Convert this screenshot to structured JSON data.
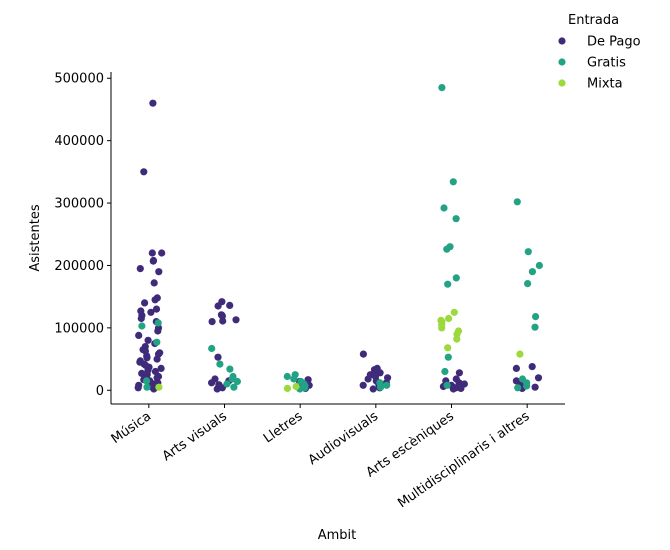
{
  "chart_data": {
    "type": "scatter",
    "title": "",
    "xlabel": "Ambit",
    "ylabel": "Asistentes",
    "categories": [
      "Música",
      "Arts visuals",
      "Lletres",
      "Audiovisuals",
      "Arts escèniques",
      "Multidisciplinaris i altres"
    ],
    "y_ticks": [
      "0",
      "100000",
      "200000",
      "300000",
      "400000",
      "500000"
    ],
    "ylim": [
      -22000,
      510000
    ],
    "grid": false,
    "legend": {
      "title": "Entrada",
      "placement": "top-right",
      "entries": [
        {
          "label": "De Pago",
          "color": "#3f2b7a"
        },
        {
          "label": "Gratis",
          "color": "#22a384"
        },
        {
          "label": "Mixta",
          "color": "#9bd93c"
        }
      ]
    },
    "series": [
      {
        "name": "De Pago",
        "color": "#3f2b7a",
        "points": [
          [
            "Música",
            460000
          ],
          [
            "Música",
            350000
          ],
          [
            "Música",
            220000
          ],
          [
            "Música",
            220000
          ],
          [
            "Música",
            208000
          ],
          [
            "Música",
            207000
          ],
          [
            "Música",
            195000
          ],
          [
            "Música",
            190000
          ],
          [
            "Música",
            172000
          ],
          [
            "Música",
            148000
          ],
          [
            "Música",
            145000
          ],
          [
            "Música",
            140000
          ],
          [
            "Música",
            130000
          ],
          [
            "Música",
            127000
          ],
          [
            "Música",
            125000
          ],
          [
            "Música",
            120000
          ],
          [
            "Música",
            115000
          ],
          [
            "Música",
            110000
          ],
          [
            "Música",
            100000
          ],
          [
            "Música",
            95000
          ],
          [
            "Música",
            88000
          ],
          [
            "Música",
            80000
          ],
          [
            "Música",
            75000
          ],
          [
            "Música",
            70000
          ],
          [
            "Música",
            65000
          ],
          [
            "Música",
            63000
          ],
          [
            "Música",
            60000
          ],
          [
            "Música",
            58000
          ],
          [
            "Música",
            55000
          ],
          [
            "Música",
            52000
          ],
          [
            "Música",
            50000
          ],
          [
            "Música",
            47000
          ],
          [
            "Música",
            45000
          ],
          [
            "Música",
            42000
          ],
          [
            "Música",
            40000
          ],
          [
            "Música",
            37000
          ],
          [
            "Música",
            35000
          ],
          [
            "Música",
            32000
          ],
          [
            "Música",
            30000
          ],
          [
            "Música",
            27000
          ],
          [
            "Música",
            25000
          ],
          [
            "Música",
            22000
          ],
          [
            "Música",
            20000
          ],
          [
            "Música",
            17000
          ],
          [
            "Música",
            15000
          ],
          [
            "Música",
            12000
          ],
          [
            "Música",
            10000
          ],
          [
            "Música",
            8000
          ],
          [
            "Música",
            6000
          ],
          [
            "Música",
            4000
          ],
          [
            "Música",
            2000
          ],
          [
            "Arts visuals",
            142000
          ],
          [
            "Arts visuals",
            136000
          ],
          [
            "Arts visuals",
            135000
          ],
          [
            "Arts visuals",
            121000
          ],
          [
            "Arts visuals",
            120000
          ],
          [
            "Arts visuals",
            119000
          ],
          [
            "Arts visuals",
            113000
          ],
          [
            "Arts visuals",
            111000
          ],
          [
            "Arts visuals",
            110000
          ],
          [
            "Arts visuals",
            53000
          ],
          [
            "Arts visuals",
            18000
          ],
          [
            "Arts visuals",
            15000
          ],
          [
            "Arts visuals",
            12000
          ],
          [
            "Arts visuals",
            9000
          ],
          [
            "Arts visuals",
            6000
          ],
          [
            "Arts visuals",
            4000
          ],
          [
            "Arts visuals",
            2000
          ],
          [
            "Lletres",
            17000
          ],
          [
            "Lletres",
            14000
          ],
          [
            "Lletres",
            11000
          ],
          [
            "Lletres",
            8000
          ],
          [
            "Lletres",
            5000
          ],
          [
            "Lletres",
            3000
          ],
          [
            "Audiovisuals",
            58000
          ],
          [
            "Audiovisuals",
            35000
          ],
          [
            "Audiovisuals",
            33000
          ],
          [
            "Audiovisuals",
            30000
          ],
          [
            "Audiovisuals",
            28000
          ],
          [
            "Audiovisuals",
            25000
          ],
          [
            "Audiovisuals",
            22000
          ],
          [
            "Audiovisuals",
            20000
          ],
          [
            "Audiovisuals",
            18000
          ],
          [
            "Audiovisuals",
            15000
          ],
          [
            "Audiovisuals",
            12000
          ],
          [
            "Audiovisuals",
            10000
          ],
          [
            "Audiovisuals",
            8000
          ],
          [
            "Audiovisuals",
            6000
          ],
          [
            "Audiovisuals",
            4000
          ],
          [
            "Audiovisuals",
            2000
          ],
          [
            "Arts escèniques",
            28000
          ],
          [
            "Arts escèniques",
            18000
          ],
          [
            "Arts escèniques",
            15000
          ],
          [
            "Arts escèniques",
            12000
          ],
          [
            "Arts escèniques",
            10000
          ],
          [
            "Arts escèniques",
            8000
          ],
          [
            "Arts escèniques",
            6000
          ],
          [
            "Arts escèniques",
            5000
          ],
          [
            "Arts escèniques",
            4000
          ],
          [
            "Arts escèniques",
            3000
          ],
          [
            "Arts escèniques",
            2000
          ],
          [
            "Multidisciplinaris i altres",
            38000
          ],
          [
            "Multidisciplinaris i altres",
            35000
          ],
          [
            "Multidisciplinaris i altres",
            20000
          ],
          [
            "Multidisciplinaris i altres",
            15000
          ],
          [
            "Multidisciplinaris i altres",
            12000
          ],
          [
            "Multidisciplinaris i altres",
            8000
          ],
          [
            "Multidisciplinaris i altres",
            5000
          ],
          [
            "Multidisciplinaris i altres",
            3000
          ]
        ]
      },
      {
        "name": "Gratis",
        "color": "#22a384",
        "points": [
          [
            "Música",
            108000
          ],
          [
            "Música",
            103000
          ],
          [
            "Música",
            77000
          ],
          [
            "Música",
            15000
          ],
          [
            "Música",
            5000
          ],
          [
            "Arts visuals",
            67000
          ],
          [
            "Arts visuals",
            42000
          ],
          [
            "Arts visuals",
            34000
          ],
          [
            "Arts visuals",
            22000
          ],
          [
            "Arts visuals",
            18000
          ],
          [
            "Arts visuals",
            14000
          ],
          [
            "Arts visuals",
            10000
          ],
          [
            "Arts visuals",
            5000
          ],
          [
            "Lletres",
            25000
          ],
          [
            "Lletres",
            22000
          ],
          [
            "Lletres",
            18000
          ],
          [
            "Lletres",
            14000
          ],
          [
            "Lletres",
            10000
          ],
          [
            "Lletres",
            7000
          ],
          [
            "Lletres",
            4000
          ],
          [
            "Lletres",
            2000
          ],
          [
            "Audiovisuals",
            12000
          ],
          [
            "Audiovisuals",
            8000
          ],
          [
            "Audiovisuals",
            5000
          ],
          [
            "Arts escèniques",
            485000
          ],
          [
            "Arts escèniques",
            334000
          ],
          [
            "Arts escèniques",
            292000
          ],
          [
            "Arts escèniques",
            275000
          ],
          [
            "Arts escèniques",
            230000
          ],
          [
            "Arts escèniques",
            226000
          ],
          [
            "Arts escèniques",
            180000
          ],
          [
            "Arts escèniques",
            170000
          ],
          [
            "Arts escèniques",
            53000
          ],
          [
            "Arts escèniques",
            30000
          ],
          [
            "Arts escèniques",
            8000
          ],
          [
            "Multidisciplinaris i altres",
            302000
          ],
          [
            "Multidisciplinaris i altres",
            222000
          ],
          [
            "Multidisciplinaris i altres",
            200000
          ],
          [
            "Multidisciplinaris i altres",
            190000
          ],
          [
            "Multidisciplinaris i altres",
            171000
          ],
          [
            "Multidisciplinaris i altres",
            118000
          ],
          [
            "Multidisciplinaris i altres",
            101000
          ],
          [
            "Multidisciplinaris i altres",
            18000
          ],
          [
            "Multidisciplinaris i altres",
            12000
          ],
          [
            "Multidisciplinaris i altres",
            7000
          ],
          [
            "Multidisciplinaris i altres",
            4000
          ]
        ]
      },
      {
        "name": "Mixta",
        "color": "#9bd93c",
        "points": [
          [
            "Música",
            5000
          ],
          [
            "Lletres",
            6000
          ],
          [
            "Lletres",
            3000
          ],
          [
            "Arts escèniques",
            125000
          ],
          [
            "Arts escèniques",
            115000
          ],
          [
            "Arts escèniques",
            112000
          ],
          [
            "Arts escèniques",
            110000
          ],
          [
            "Arts escèniques",
            105000
          ],
          [
            "Arts escèniques",
            100000
          ],
          [
            "Arts escèniques",
            95000
          ],
          [
            "Arts escèniques",
            90000
          ],
          [
            "Arts escèniques",
            82000
          ],
          [
            "Arts escèniques",
            68000
          ],
          [
            "Multidisciplinaris i altres",
            58000
          ]
        ]
      }
    ]
  }
}
